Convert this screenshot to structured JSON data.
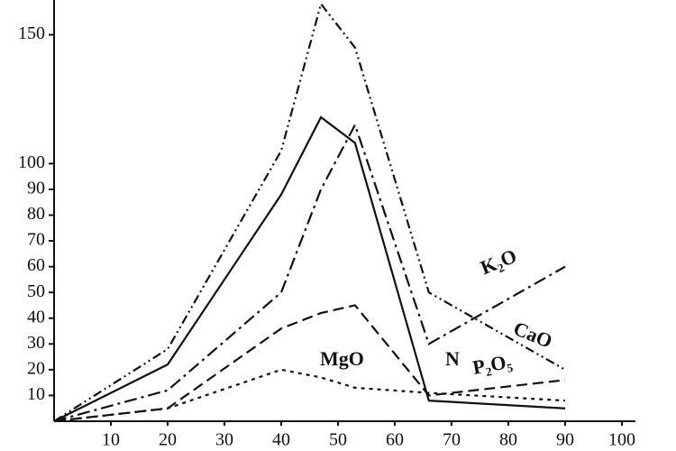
{
  "chart_data": {
    "type": "line",
    "x": [
      0,
      20,
      40,
      47,
      53,
      66,
      90
    ],
    "xlim": [
      0,
      100
    ],
    "xticks": [
      10,
      20,
      30,
      40,
      50,
      60,
      70,
      80,
      90,
      100
    ],
    "ylim": [
      0,
      160
    ],
    "yticks": [
      10,
      20,
      30,
      40,
      50,
      60,
      70,
      80,
      90,
      100,
      150
    ],
    "series": [
      {
        "name": "CaO",
        "color": "#111111",
        "dash": "10 4 2 4 2 4",
        "values": [
          0,
          28,
          105,
          162,
          145,
          50,
          20
        ]
      },
      {
        "name": "N",
        "color": "#111111",
        "dash": "",
        "values": [
          0,
          22,
          88,
          118,
          108,
          8,
          5
        ]
      },
      {
        "name": "K₂O",
        "color": "#111111",
        "dash": "14 5 3 5",
        "values": [
          0,
          12,
          50,
          90,
          115,
          30,
          60
        ]
      },
      {
        "name": "P₂O₅",
        "color": "#111111",
        "dash": "12 6",
        "values": [
          0,
          5,
          36,
          42,
          45,
          10,
          16
        ]
      },
      {
        "name": "MgO",
        "color": "#111111",
        "dash": "4 5",
        "values": [
          0,
          5,
          20,
          17,
          13,
          11,
          8
        ]
      }
    ]
  }
}
